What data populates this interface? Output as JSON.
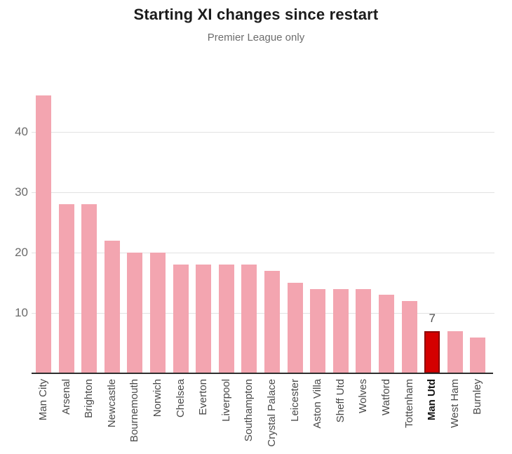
{
  "chart_data": {
    "type": "bar",
    "title": "Starting XI changes since restart",
    "subtitle": "Premier League only",
    "categories": [
      "Man City",
      "Arsenal",
      "Brighton",
      "Newcastle",
      "Bournemouth",
      "Norwich",
      "Chelsea",
      "Everton",
      "Liverpool",
      "Southampton",
      "Crystal Palace",
      "Leicester",
      "Aston Villa",
      "Sheff Utd",
      "Wolves",
      "Watford",
      "Tottenham",
      "Man Utd",
      "West Ham",
      "Burnley"
    ],
    "values": [
      46,
      28,
      28,
      22,
      20,
      20,
      18,
      18,
      18,
      18,
      17,
      15,
      14,
      14,
      14,
      13,
      12,
      7,
      7,
      6
    ],
    "highlight": {
      "category": "Man Utd",
      "value_label": "7"
    },
    "yticks": [
      10,
      20,
      30,
      40
    ],
    "ylim": [
      0,
      47
    ],
    "grid": "horizontal",
    "legend": null,
    "colors": {
      "bar": "#f3a5b0",
      "highlight_bar": "#d40000",
      "highlight_border": "#8e0000",
      "axis_line": "#2e2e2e",
      "gridline": "#e2e2e2",
      "tick_label": "#6b6b6b",
      "category_label": "#4a4a4a",
      "highlight_category_label": "#141414",
      "title": "#1c1c1c",
      "subtitle": "#6d6d6d",
      "annotation": "#4f4f4f"
    }
  }
}
